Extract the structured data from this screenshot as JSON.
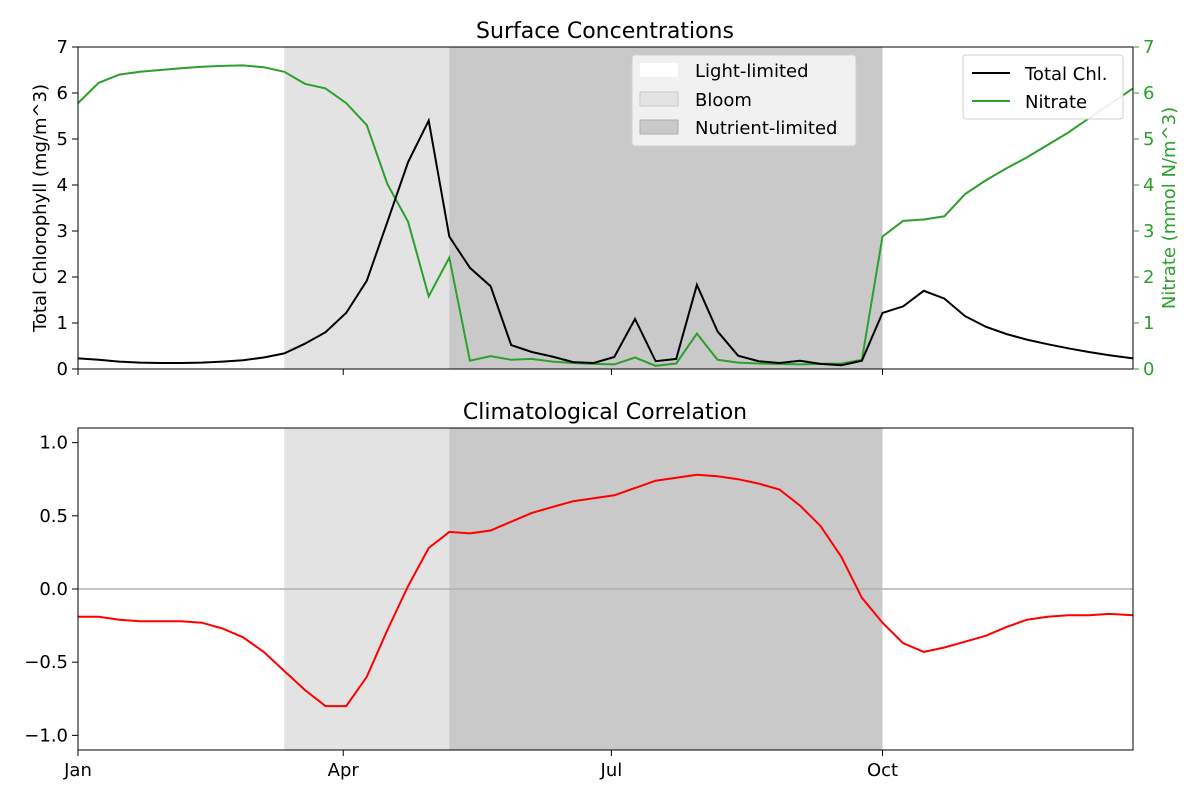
{
  "colors": {
    "light_limited": "#ffffff",
    "bloom": "#e3e3e3",
    "nutrient_limited": "#c9c9c9",
    "chl": "#000000",
    "nitrate": "#2ca02c",
    "correlation": "#ff0000",
    "zero_line": "#b0b0b0"
  },
  "months": [
    "Jan",
    "Apr",
    "Jul",
    "Oct"
  ],
  "month_days": [
    0,
    90,
    181,
    273
  ],
  "regimes": {
    "bloom_start_day": 70,
    "nutrient_start_day": 126,
    "nutrient_end_day": 273,
    "labels": [
      "Light-limited",
      "Bloom",
      "Nutrient-limited"
    ]
  },
  "chart_data": [
    {
      "type": "line",
      "title": "Surface Concentrations",
      "xlabel": "",
      "ylabel": "Total Chlorophyll (mg/m^3)",
      "y2label": "Nitrate (mmol N/m^3)",
      "xlim": [
        0,
        358
      ],
      "ylim": [
        0,
        7
      ],
      "y2lim": [
        0,
        7
      ],
      "yticks": [
        "0",
        "1",
        "2",
        "3",
        "4",
        "5",
        "6",
        "7"
      ],
      "y2ticks": [
        "0",
        "1",
        "2",
        "3",
        "4",
        "5",
        "6",
        "7"
      ],
      "x": [
        0,
        7,
        14,
        21,
        28,
        35,
        42,
        49,
        56,
        63,
        70,
        77,
        84,
        91,
        98,
        105,
        112,
        119,
        126,
        133,
        140,
        147,
        154,
        161,
        168,
        175,
        182,
        189,
        196,
        203,
        210,
        217,
        224,
        231,
        238,
        245,
        252,
        259,
        266,
        273,
        280,
        287,
        294,
        301,
        308,
        315,
        322,
        329,
        336,
        343,
        350,
        358
      ],
      "series": [
        {
          "name": "Total Chl.",
          "values": [
            0.23,
            0.2,
            0.16,
            0.14,
            0.13,
            0.13,
            0.14,
            0.16,
            0.19,
            0.25,
            0.34,
            0.55,
            0.8,
            1.22,
            1.92,
            3.2,
            4.5,
            5.4,
            2.88,
            2.2,
            1.8,
            0.52,
            0.37,
            0.27,
            0.15,
            0.13,
            0.26,
            1.09,
            0.17,
            0.22,
            1.83,
            0.82,
            0.29,
            0.17,
            0.13,
            0.18,
            0.11,
            0.08,
            0.18,
            1.22,
            1.36,
            1.7,
            1.53,
            1.15,
            0.92,
            0.76,
            0.64,
            0.54,
            0.45,
            0.37,
            0.3,
            0.23
          ]
        },
        {
          "name": "Nitrate",
          "axis": "right",
          "values": [
            5.78,
            6.22,
            6.4,
            6.46,
            6.5,
            6.54,
            6.57,
            6.59,
            6.6,
            6.56,
            6.46,
            6.2,
            6.1,
            5.78,
            5.3,
            4.02,
            3.2,
            1.58,
            2.42,
            0.18,
            0.28,
            0.2,
            0.22,
            0.16,
            0.13,
            0.11,
            0.1,
            0.25,
            0.07,
            0.12,
            0.77,
            0.2,
            0.14,
            0.12,
            0.11,
            0.1,
            0.11,
            0.12,
            0.2,
            2.88,
            3.22,
            3.25,
            3.32,
            3.8,
            4.1,
            4.36,
            4.6,
            4.87,
            5.14,
            5.45,
            5.75,
            6.1
          ]
        }
      ],
      "legend_regimes_position": "top-center",
      "legend_series_position": "top-right"
    },
    {
      "type": "line",
      "title": "Climatological Correlation",
      "xlabel": "",
      "ylabel": "",
      "xlim": [
        0,
        358
      ],
      "ylim": [
        -1.1,
        1.1
      ],
      "yticks": [
        "−1.0",
        "−0.5",
        "0.0",
        "0.5",
        "1.0"
      ],
      "ytick_values": [
        -1.0,
        -0.5,
        0.0,
        0.5,
        1.0
      ],
      "xticks": [
        "Jan",
        "Apr",
        "Jul",
        "Oct"
      ],
      "x": [
        0,
        7,
        14,
        21,
        28,
        35,
        42,
        49,
        56,
        63,
        70,
        77,
        84,
        91,
        98,
        105,
        112,
        119,
        126,
        133,
        140,
        147,
        154,
        161,
        168,
        175,
        182,
        189,
        196,
        203,
        210,
        217,
        224,
        231,
        238,
        245,
        252,
        259,
        266,
        273,
        280,
        287,
        294,
        301,
        308,
        315,
        322,
        329,
        336,
        343,
        350,
        358
      ],
      "series": [
        {
          "name": "Correlation",
          "values": [
            -0.19,
            -0.19,
            -0.21,
            -0.22,
            -0.22,
            -0.22,
            -0.23,
            -0.27,
            -0.33,
            -0.43,
            -0.56,
            -0.69,
            -0.8,
            -0.8,
            -0.6,
            -0.28,
            0.02,
            0.28,
            0.39,
            0.38,
            0.4,
            0.46,
            0.52,
            0.56,
            0.6,
            0.62,
            0.64,
            0.69,
            0.74,
            0.76,
            0.78,
            0.77,
            0.75,
            0.72,
            0.68,
            0.57,
            0.43,
            0.22,
            -0.06,
            -0.23,
            -0.37,
            -0.43,
            -0.4,
            -0.36,
            -0.32,
            -0.26,
            -0.21,
            -0.19,
            -0.18,
            -0.18,
            -0.17,
            -0.18
          ]
        }
      ]
    }
  ]
}
